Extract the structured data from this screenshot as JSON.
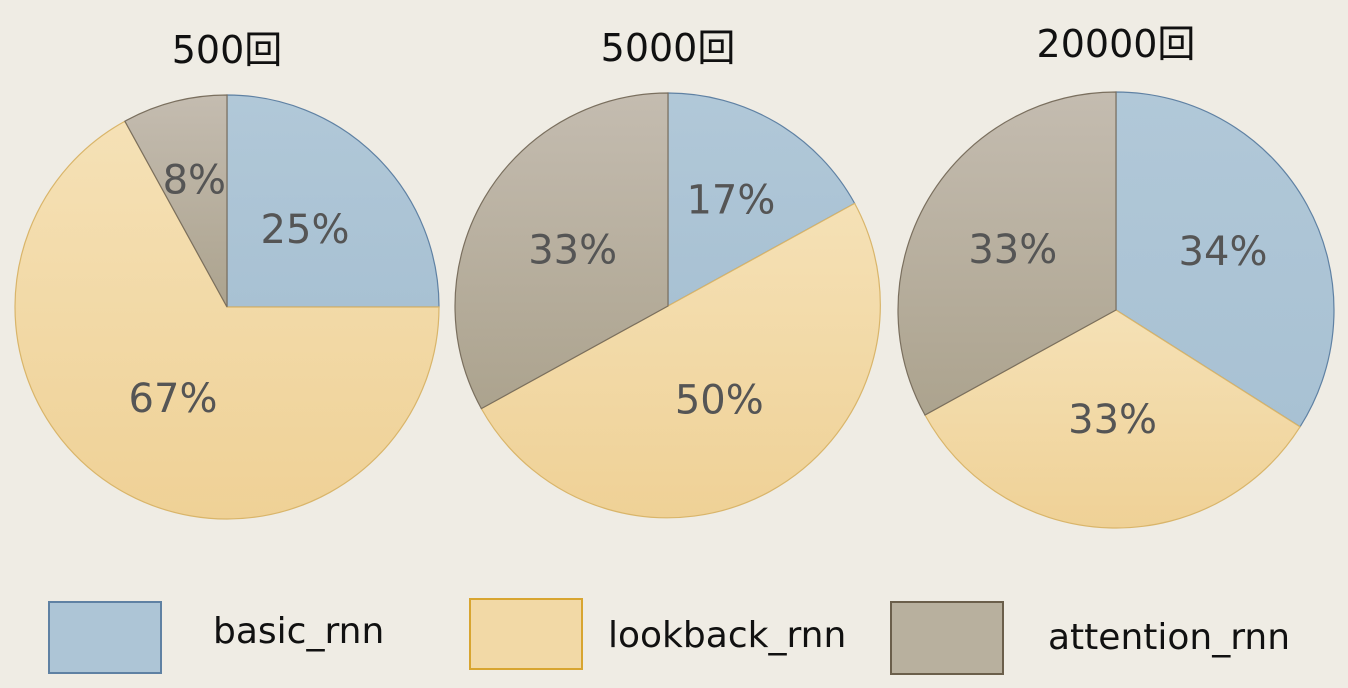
{
  "chart_data": [
    {
      "type": "pie",
      "title": "500回",
      "categories": [
        "basic_rnn",
        "lookback_rnn",
        "attention_rnn"
      ],
      "values": [
        25,
        67,
        8
      ],
      "labels": [
        "25%",
        "67%",
        "8%"
      ]
    },
    {
      "type": "pie",
      "title": "5000回",
      "categories": [
        "basic_rnn",
        "lookback_rnn",
        "attention_rnn"
      ],
      "values": [
        17,
        50,
        33
      ],
      "labels": [
        "17%",
        "50%",
        "33%"
      ]
    },
    {
      "type": "pie",
      "title": "20000回",
      "categories": [
        "basic_rnn",
        "lookback_rnn",
        "attention_rnn"
      ],
      "values": [
        34,
        33,
        33
      ],
      "labels": [
        "34%",
        "33%",
        "33%"
      ]
    }
  ],
  "legend": {
    "items": [
      {
        "label": "basic_rnn",
        "color": "#adc5d6",
        "border": "#5f81a3"
      },
      {
        "label": "lookback_rnn",
        "color": "#f2d9a6",
        "border": "#d8a530"
      },
      {
        "label": "attention_rnn",
        "color": "#b8b09e",
        "border": "#6b5f4b"
      }
    ]
  },
  "colors": {
    "background": "#efece4",
    "basic_rnn": "#adc5d6",
    "lookback_rnn": "#f2d9a6",
    "attention_rnn": "#b8b09e"
  }
}
